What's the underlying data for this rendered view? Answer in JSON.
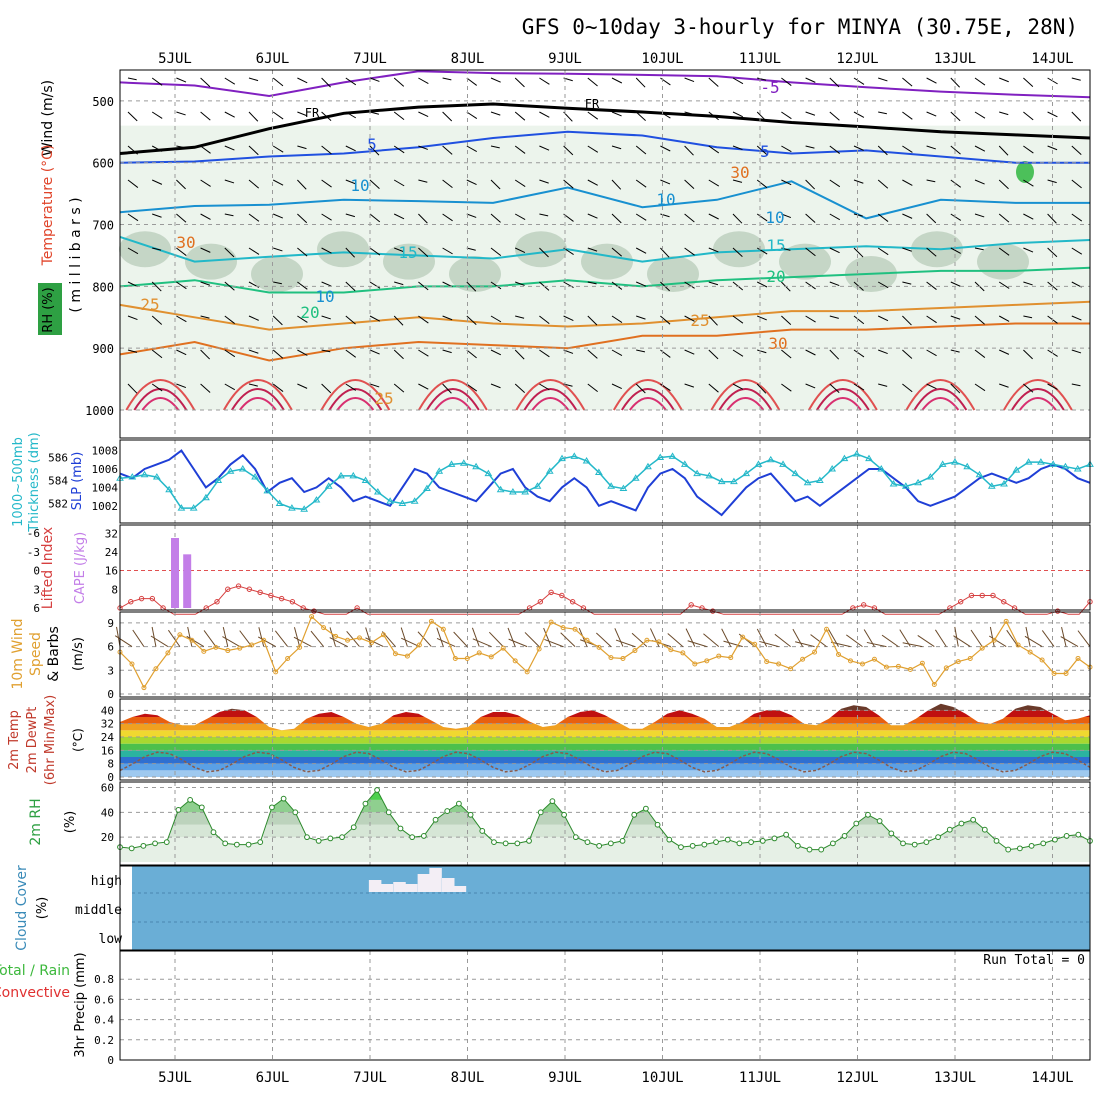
{
  "title": "GFS 0~10day 3-hourly for MINYA (30.75E, 28N)",
  "dates": [
    "5JUL",
    "6JUL",
    "7JUL",
    "8JUL",
    "9JUL",
    "10JUL",
    "11JUL",
    "12JUL",
    "13JUL",
    "14JUL"
  ],
  "colors": {
    "temperature_label": "#e0442a",
    "rh_label": "#2ea043",
    "rh_fill": "#dcebdc",
    "rh_fill_dark": "#b5c9b6",
    "slp_line": "#1f3fd6",
    "thickness_line": "#24b8c9",
    "cape_bar": "#c37ee8",
    "lifted_index_line": "#d64040",
    "wind_speed_line": "#e0a030",
    "cloud_bg": "#6aaed6",
    "cloud_high": "#f3eef5",
    "rh2m_line": "#2c8a2c"
  },
  "chart_data": [
    {
      "panel": "upper-air",
      "type": "line",
      "ylabel_parts": [
        "Temperature (°C)",
        "Wind (m/s)",
        "RH (%)",
        "( m i l l i b a r s )"
      ],
      "y_ticks": [
        500,
        600,
        700,
        800,
        900,
        1000
      ],
      "ylim": [
        1000,
        450
      ],
      "contour_labels": [
        "-5",
        "FR",
        "FR",
        "5",
        "5",
        "10",
        "10",
        "15",
        "15",
        "20",
        "20",
        "25",
        "25",
        "25",
        "30",
        "10",
        "30",
        "30",
        "10"
      ],
      "isotherms": [
        {
          "name": "-5",
          "color": "#8020c0",
          "y": [
            470,
            475,
            492,
            470,
            452,
            455,
            456,
            458,
            460,
            470,
            478,
            485,
            490,
            494
          ]
        },
        {
          "name": "FR",
          "color": "#000000",
          "y": [
            585,
            575,
            545,
            520,
            510,
            505,
            512,
            518,
            525,
            535,
            542,
            550,
            555,
            560
          ]
        },
        {
          "name": "5",
          "color": "#2050e0",
          "y": [
            600,
            598,
            590,
            585,
            575,
            560,
            550,
            556,
            575,
            585,
            580,
            590,
            600,
            600
          ]
        },
        {
          "name": "10",
          "color": "#1890d0",
          "y": [
            680,
            670,
            668,
            660,
            662,
            665,
            640,
            672,
            660,
            630,
            690,
            660,
            665,
            665
          ]
        },
        {
          "name": "15",
          "color": "#22b8c8",
          "y": [
            720,
            760,
            752,
            745,
            750,
            755,
            740,
            760,
            745,
            740,
            735,
            740,
            730,
            725
          ]
        },
        {
          "name": "20",
          "color": "#20c080",
          "y": [
            800,
            790,
            810,
            810,
            800,
            800,
            790,
            800,
            790,
            785,
            780,
            775,
            775,
            770
          ]
        },
        {
          "name": "25",
          "color": "#e09030",
          "y": [
            830,
            850,
            870,
            860,
            850,
            860,
            865,
            860,
            850,
            840,
            840,
            835,
            830,
            825
          ]
        },
        {
          "name": "30",
          "color": "#e07020",
          "y": [
            910,
            890,
            920,
            900,
            890,
            895,
            900,
            880,
            880,
            870,
            870,
            865,
            860,
            860
          ]
        }
      ]
    },
    {
      "panel": "slp-thickness",
      "type": "line",
      "ylabel_parts": [
        "SLP (mb)",
        "1000~500mb",
        "Thickness (dm)"
      ],
      "slp_ticks": [
        1002,
        1004,
        1006,
        1008
      ],
      "thickness_ticks": [
        582,
        584,
        586
      ],
      "series": [
        {
          "name": "SLP (mb)",
          "values": [
            1005.5,
            1005,
            1006,
            1006.5,
            1007,
            1008,
            1006,
            1004,
            1005,
            1006.5,
            1007.5,
            1006,
            1003.5,
            1004.5,
            1005,
            1003.5,
            1004,
            1005,
            1004,
            1002.5,
            1003,
            1002.5,
            1002,
            1004,
            1006,
            1005.5,
            1004,
            1003.5,
            1003,
            1002.5,
            1004,
            1005.5,
            1006,
            1004,
            1003,
            1002.5,
            1004,
            1005,
            1004,
            1002,
            1002.5,
            1002,
            1001.5,
            1004,
            1005.5,
            1006,
            1005,
            1003,
            1002,
            1001,
            1002.5,
            1004,
            1005,
            1005.5,
            1004,
            1002.5,
            1003,
            1002,
            1003,
            1004,
            1005,
            1006,
            1006,
            1005,
            1004,
            1002.5,
            1002,
            1002.5,
            1003,
            1004,
            1005,
            1005.5,
            1005,
            1004.5,
            1005,
            1006,
            1006.5,
            1006,
            1005,
            1004.5
          ]
        },
        {
          "name": "Thickness (dm)",
          "values": [
            584.2,
            584.3,
            584.5,
            584.3,
            583.2,
            581.6,
            581.6,
            582.5,
            584,
            584.8,
            585,
            584.3,
            583.1,
            582,
            581.6,
            581.5,
            582.3,
            583.5,
            584.4,
            584.4,
            584,
            583,
            582.2,
            582,
            582.2,
            583.3,
            584.8,
            585.4,
            585.5,
            585.2,
            584.6,
            583.2,
            583,
            583,
            583.5,
            584.8,
            585.9,
            586.1,
            585.7,
            584.7,
            583.5,
            583.3,
            584.2,
            585.2,
            586,
            586.1,
            585.4,
            584.6,
            584.4,
            583.9,
            583.9,
            584.6,
            585.4,
            585.8,
            585.4,
            584.6,
            583.8,
            584,
            585,
            585.9,
            586.3,
            585.9,
            585,
            583.7,
            583.5,
            583.8,
            584.3,
            585.4,
            585.6,
            585.2,
            584.5,
            583.5,
            583.7,
            584.9,
            585.6,
            585.6,
            585.4,
            585.2,
            585,
            585.4
          ]
        }
      ]
    },
    {
      "panel": "cape-li",
      "type": "bar",
      "ylabel_parts": [
        "Lifted Index",
        "CAPE (J/kg)"
      ],
      "li_ticks": [
        "-6",
        "-3",
        "0",
        "3",
        "6"
      ],
      "cape_ticks": [
        8,
        16,
        24,
        32
      ],
      "cape_bars": [
        {
          "x": 5.0,
          "value": 30
        },
        {
          "x": 5.125,
          "value": 23
        }
      ],
      "lifted_index": [
        6,
        5,
        4.5,
        4.5,
        6,
        7,
        7,
        7,
        6,
        5,
        3,
        2.5,
        3,
        3.5,
        4,
        4.5,
        5,
        6,
        6.5,
        7,
        7,
        7,
        6,
        7,
        7,
        7,
        7,
        7,
        7,
        7,
        7,
        7,
        7,
        7,
        7,
        7,
        7,
        7,
        6,
        5,
        3.5,
        4,
        5,
        6,
        7,
        7,
        7,
        7,
        7,
        7,
        7,
        7,
        7,
        5.5,
        6,
        6.5,
        7,
        7,
        7,
        7,
        7,
        7,
        7,
        7,
        7,
        7,
        7,
        7,
        6,
        5.5,
        6,
        7,
        7,
        7,
        7,
        7,
        7,
        6,
        5,
        4,
        4,
        4,
        5,
        6,
        7,
        7,
        7,
        6.5,
        7,
        7,
        5
      ]
    },
    {
      "panel": "wind10m",
      "type": "line",
      "ylabel_parts": [
        "10m Wind",
        "Speed",
        "& Barbs",
        "(m/s)"
      ],
      "y_ticks": [
        0,
        3,
        6,
        9
      ],
      "ylim": [
        0,
        10
      ],
      "values": [
        5.3,
        3.8,
        0.8,
        3.2,
        5.2,
        7.5,
        6.8,
        5.4,
        5.9,
        5.5,
        5.8,
        6.2,
        6.8,
        2.8,
        4.5,
        5.9,
        9.8,
        8.4,
        7.3,
        6.8,
        7.1,
        6.5,
        7.5,
        5.1,
        4.8,
        6.2,
        9.2,
        8.2,
        4.5,
        4.5,
        5.2,
        4.7,
        5.8,
        4.2,
        2.8,
        5.7,
        9.1,
        8.4,
        8.2,
        6.8,
        5.9,
        4.6,
        4.5,
        5.5,
        6.8,
        6.6,
        5.6,
        5.2,
        3.8,
        4.2,
        4.8,
        4.6,
        7.2,
        6.3,
        4.1,
        3.8,
        3.2,
        4.4,
        5.3,
        8.2,
        5.0,
        4.2,
        3.8,
        4.4,
        3.4,
        3.5,
        3.1,
        3.9,
        1.2,
        3.3,
        4.1,
        4.5,
        5.8,
        6.8,
        9.2,
        6.2,
        5.3,
        4.3,
        2.6,
        2.6,
        4.5,
        3.4
      ]
    },
    {
      "panel": "temp2m",
      "type": "area",
      "ylabel_parts": [
        "2m Temp",
        "2m DewPt",
        "(6hr Min/Max)",
        "(°C)"
      ],
      "y_ticks": [
        0,
        8,
        16,
        24,
        32,
        40
      ],
      "ylim": [
        0,
        45
      ],
      "temperature": [
        33,
        36,
        38,
        37,
        33,
        31,
        31,
        35,
        39,
        41,
        40,
        36,
        30,
        28,
        29,
        35,
        38,
        39,
        36,
        32,
        30,
        32,
        37,
        39,
        38,
        34,
        30,
        29,
        30,
        36,
        39,
        39,
        37,
        33,
        30,
        31,
        36,
        39,
        40,
        37,
        33,
        29,
        29,
        33,
        38,
        40,
        38,
        35,
        30,
        30,
        33,
        38,
        40,
        40,
        37,
        32,
        31,
        35,
        41,
        43,
        42,
        37,
        31,
        31,
        35,
        40,
        44,
        42,
        38,
        33,
        32,
        35,
        41,
        43,
        42,
        38,
        34,
        35,
        37
      ]
    },
    {
      "panel": "rh2m",
      "type": "area",
      "ylabel_parts": [
        "2m RH",
        "(%)"
      ],
      "y_ticks": [
        20,
        40,
        60
      ],
      "ylim": [
        0,
        62
      ],
      "values": [
        12,
        11,
        13,
        15,
        16,
        42,
        50,
        44,
        24,
        15,
        14,
        14,
        16,
        44,
        51,
        40,
        20,
        17,
        19,
        20,
        28,
        47,
        58,
        40,
        27,
        20,
        21,
        34,
        41,
        47,
        38,
        25,
        16,
        15,
        15,
        17,
        40,
        49,
        38,
        20,
        16,
        13,
        15,
        17,
        38,
        43,
        30,
        18,
        12,
        13,
        14,
        16,
        18,
        15,
        16,
        17,
        19,
        22,
        13,
        10,
        10,
        15,
        21,
        31,
        38,
        33,
        23,
        15,
        14,
        16,
        20,
        26,
        31,
        34,
        26,
        17,
        10,
        11,
        13,
        15,
        18,
        21,
        22,
        17
      ]
    },
    {
      "panel": "cloud",
      "type": "heatmap",
      "ylabel_parts": [
        "Cloud Cover",
        "(%)"
      ],
      "levels": [
        "high",
        "middle",
        "low"
      ],
      "high_cloud_days": [
        7.05,
        7.17,
        7.3,
        7.42,
        7.55,
        7.67,
        7.8,
        7.92
      ]
    },
    {
      "panel": "precip",
      "type": "bar",
      "ylabel_parts": [
        "Total / Rain",
        "Convective",
        "3hr Precip (mm)"
      ],
      "y_ticks": [
        "0",
        "0.2",
        "0.4",
        "0.6",
        "0.8"
      ],
      "ylim": [
        0,
        1
      ],
      "values": [],
      "run_total": "Run Total = 0"
    }
  ]
}
